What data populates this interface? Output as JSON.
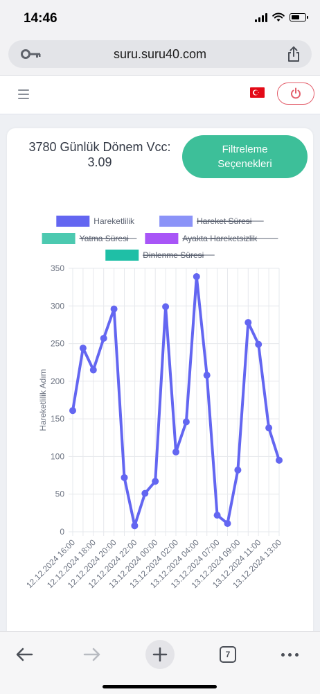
{
  "status_bar": {
    "time": "14:46"
  },
  "browser": {
    "url": "suru.suru40.com",
    "tab_count": "7"
  },
  "header": {
    "flag": "turkey-flag"
  },
  "card": {
    "title": "3780 Günlük Dönem Vcc: 3.09",
    "filter_button": "Filtreleme Seçenekleri"
  },
  "chart_data": {
    "type": "line",
    "ylabel": "Hareketlilik Adım",
    "ylim": [
      0,
      350
    ],
    "yticks": [
      0,
      50,
      100,
      150,
      200,
      250,
      300,
      350
    ],
    "legend_position": "top",
    "grid": true,
    "legend": [
      {
        "name": "Hareketlilik",
        "color": "#6366f1",
        "hidden": false
      },
      {
        "name": "Hareket Süresi",
        "color": "#8b93f8",
        "hidden": true
      },
      {
        "name": "Yatma Süresi",
        "color": "#4cc9b0",
        "hidden": true
      },
      {
        "name": "Ayakta Hareketsizlik",
        "color": "#a855f7",
        "hidden": true
      },
      {
        "name": "Dinlenme Süresi",
        "color": "#1fbfa6",
        "hidden": true
      }
    ],
    "xtick_labels": [
      "12.12.2024 16:00",
      "12.12.2024 18:00",
      "12.12.2024 20:00",
      "12.12.2024 22:00",
      "13.12.2024 00:00",
      "13.12.2024 02:00",
      "13.12.2024 04:00",
      "13.12.2024 07:00",
      "13.12.2024 09:00",
      "13.12.2024 11:00",
      "13.12.2024 13:00"
    ],
    "series": [
      {
        "name": "Hareketlilik",
        "color": "#6366f1",
        "values": [
          161,
          244,
          215,
          257,
          296,
          72,
          8,
          51,
          67,
          299,
          106,
          146,
          339,
          208,
          22,
          11,
          82,
          278,
          249,
          138,
          95
        ]
      }
    ]
  }
}
